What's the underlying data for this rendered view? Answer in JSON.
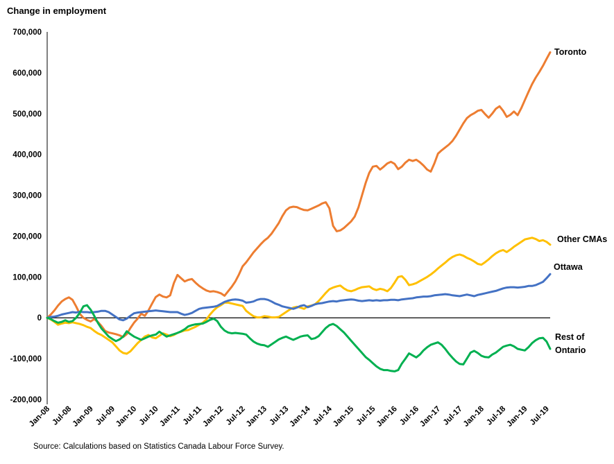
{
  "page": {
    "title": "Change in employment",
    "source": "Source: Calculations based on Statistics Canada Labour Force Survey."
  },
  "chart_data": {
    "type": "line",
    "title": "Change in employment",
    "xlabel": "",
    "ylabel": "Change in employment",
    "ylim": [
      -200000,
      700000
    ],
    "y_tick_step": 100000,
    "y_tick_labels": [
      "700,000",
      "600,000",
      "500,000",
      "400,000",
      "300,000",
      "200,000",
      "100,000",
      "0",
      "-100,000",
      "-200,000"
    ],
    "x_frequency": "monthly",
    "x_start": "Jan-08",
    "x_end": "Aug-19",
    "x_tick_labels": [
      "Jan-08",
      "Jul-08",
      "Jan-09",
      "Jul-09",
      "Jan-10",
      "Jul-10",
      "Jan-11",
      "Jul-11",
      "Jan-12",
      "Jul-12",
      "Jan-13",
      "Jul-13",
      "Jan-14",
      "Jul-14",
      "Jan-15",
      "Jul-15",
      "Jan-16",
      "Jul-16",
      "Jan-17",
      "Jul-17",
      "Jan-18",
      "Jul-18",
      "Jan-19",
      "Jul-19"
    ],
    "grid": false,
    "zero_line": true,
    "legend_position": "line-end-labels",
    "axis_color": "#808080",
    "series": [
      {
        "name": "Toronto",
        "color": "#ED7D31",
        "values": [
          0,
          8000,
          18000,
          30000,
          40000,
          46000,
          50000,
          44000,
          28000,
          10000,
          0,
          -5000,
          -9000,
          -3000,
          -10000,
          -20000,
          -32000,
          -36000,
          -38000,
          -40000,
          -43000,
          -47000,
          -40000,
          -25000,
          -12000,
          -2000,
          10000,
          5000,
          18000,
          35000,
          51000,
          57000,
          52000,
          50000,
          55000,
          85000,
          105000,
          97000,
          89000,
          93000,
          95000,
          86000,
          78000,
          72000,
          67000,
          64000,
          65000,
          63000,
          60000,
          54000,
          65000,
          76000,
          89000,
          106000,
          126000,
          136000,
          148000,
          160000,
          170000,
          180000,
          189000,
          196000,
          206000,
          219000,
          232000,
          249000,
          263000,
          270000,
          272000,
          271000,
          267000,
          264000,
          263000,
          267000,
          271000,
          275000,
          280000,
          283000,
          268000,
          225000,
          212000,
          214000,
          220000,
          228000,
          236000,
          248000,
          270000,
          300000,
          330000,
          355000,
          370000,
          372000,
          363000,
          370000,
          378000,
          382000,
          377000,
          364000,
          370000,
          380000,
          387000,
          384000,
          387000,
          381000,
          373000,
          363000,
          358000,
          378000,
          402000,
          410000,
          417000,
          424000,
          433000,
          446000,
          461000,
          476000,
          489000,
          496000,
          501000,
          507000,
          509000,
          499000,
          490000,
          500000,
          512000,
          518000,
          507000,
          492000,
          497000,
          505000,
          496000,
          513000,
          533000,
          553000,
          572000,
          588000,
          602000,
          617000,
          634000,
          650000
        ]
      },
      {
        "name": "Other CMAs",
        "color": "#FFC000",
        "values": [
          0,
          -4000,
          -10000,
          -17000,
          -14000,
          -12000,
          -13000,
          -11000,
          -13000,
          -15000,
          -18000,
          -22000,
          -25000,
          -32000,
          -38000,
          -42000,
          -48000,
          -54000,
          -60000,
          -70000,
          -80000,
          -86000,
          -88000,
          -82000,
          -72000,
          -62000,
          -54000,
          -46000,
          -42000,
          -48000,
          -50000,
          -44000,
          -38000,
          -41000,
          -45000,
          -42000,
          -37000,
          -34000,
          -31000,
          -30000,
          -26000,
          -22000,
          -17000,
          -12000,
          -4000,
          8000,
          18000,
          26000,
          31000,
          37000,
          37000,
          35000,
          33000,
          31000,
          29000,
          17000,
          10000,
          4000,
          1000,
          1000,
          4000,
          3000,
          1000,
          1000,
          2000,
          8000,
          14000,
          20000,
          25000,
          27000,
          25000,
          22000,
          28000,
          30000,
          33000,
          41000,
          51000,
          61000,
          70000,
          74000,
          77000,
          79000,
          72000,
          67000,
          65000,
          68000,
          72000,
          75000,
          76000,
          77000,
          71000,
          68000,
          71000,
          69000,
          65000,
          73000,
          86000,
          100000,
          102000,
          93000,
          80000,
          82000,
          85000,
          90000,
          95000,
          100000,
          106000,
          113000,
          121000,
          128000,
          135000,
          143000,
          149000,
          153000,
          155000,
          152000,
          147000,
          143000,
          138000,
          132000,
          130000,
          136000,
          143000,
          151000,
          158000,
          163000,
          166000,
          161000,
          167000,
          174000,
          180000,
          186000,
          192000,
          194000,
          196000,
          193000,
          188000,
          190000,
          186000,
          179000
        ]
      },
      {
        "name": "Ottawa",
        "color": "#4472C4",
        "values": [
          0,
          2000,
          3000,
          5000,
          8000,
          10000,
          12000,
          14000,
          13000,
          15000,
          14000,
          14000,
          13000,
          14000,
          15000,
          17000,
          17000,
          14000,
          8000,
          2000,
          -4000,
          -6000,
          -2000,
          5000,
          11000,
          13000,
          14000,
          15000,
          16000,
          17000,
          18000,
          17000,
          16000,
          15000,
          14000,
          14000,
          14000,
          10000,
          7000,
          9000,
          12000,
          17000,
          22000,
          24000,
          25000,
          26000,
          27000,
          29000,
          34000,
          39000,
          42000,
          44000,
          45000,
          44000,
          42000,
          37000,
          38000,
          40000,
          44000,
          46000,
          46000,
          44000,
          40000,
          35000,
          32000,
          28000,
          26000,
          24000,
          22000,
          25000,
          29000,
          31000,
          26000,
          29000,
          33000,
          35000,
          36000,
          38000,
          40000,
          41000,
          40000,
          42000,
          43000,
          44000,
          45000,
          44000,
          42000,
          41000,
          42000,
          43000,
          42000,
          43000,
          42000,
          43000,
          43000,
          44000,
          44000,
          43000,
          45000,
          46000,
          47000,
          48000,
          50000,
          51000,
          52000,
          52000,
          53000,
          55000,
          56000,
          57000,
          58000,
          57000,
          55000,
          54000,
          53000,
          55000,
          57000,
          55000,
          53000,
          56000,
          58000,
          60000,
          62000,
          64000,
          66000,
          69000,
          72000,
          74000,
          75000,
          75000,
          74000,
          75000,
          76000,
          78000,
          78000,
          80000,
          84000,
          88000,
          97000,
          107000
        ]
      },
      {
        "name": "Rest of Ontario",
        "color": "#00B050",
        "values": [
          0,
          -3000,
          -8000,
          -12000,
          -10000,
          -6000,
          -10000,
          -8000,
          0,
          12000,
          28000,
          31000,
          20000,
          5000,
          -12000,
          -26000,
          -36000,
          -46000,
          -52000,
          -57000,
          -53000,
          -46000,
          -33000,
          -40000,
          -46000,
          -50000,
          -54000,
          -50000,
          -46000,
          -43000,
          -41000,
          -34000,
          -40000,
          -46000,
          -43000,
          -40000,
          -37000,
          -33000,
          -28000,
          -21000,
          -18000,
          -16000,
          -15000,
          -14000,
          -10000,
          -5000,
          -2000,
          -8000,
          -22000,
          -31000,
          -36000,
          -38000,
          -37000,
          -38000,
          -39000,
          -41000,
          -50000,
          -58000,
          -63000,
          -66000,
          -67000,
          -71000,
          -65000,
          -59000,
          -53000,
          -49000,
          -46000,
          -50000,
          -54000,
          -50000,
          -46000,
          -44000,
          -43000,
          -52000,
          -50000,
          -45000,
          -35000,
          -25000,
          -18000,
          -15000,
          -20000,
          -28000,
          -36000,
          -46000,
          -56000,
          -66000,
          -76000,
          -86000,
          -96000,
          -103000,
          -111000,
          -119000,
          -125000,
          -128000,
          -128000,
          -130000,
          -131000,
          -128000,
          -112000,
          -100000,
          -87000,
          -92000,
          -97000,
          -90000,
          -80000,
          -72000,
          -66000,
          -63000,
          -60000,
          -66000,
          -76000,
          -88000,
          -98000,
          -107000,
          -113000,
          -114000,
          -100000,
          -85000,
          -81000,
          -86000,
          -93000,
          -96000,
          -97000,
          -90000,
          -85000,
          -78000,
          -71000,
          -68000,
          -66000,
          -70000,
          -76000,
          -78000,
          -80000,
          -72000,
          -62000,
          -55000,
          -50000,
          -49000,
          -58000,
          -76000
        ]
      }
    ],
    "source": "Source: Calculations based on Statistics Canada Labour Force Survey."
  }
}
